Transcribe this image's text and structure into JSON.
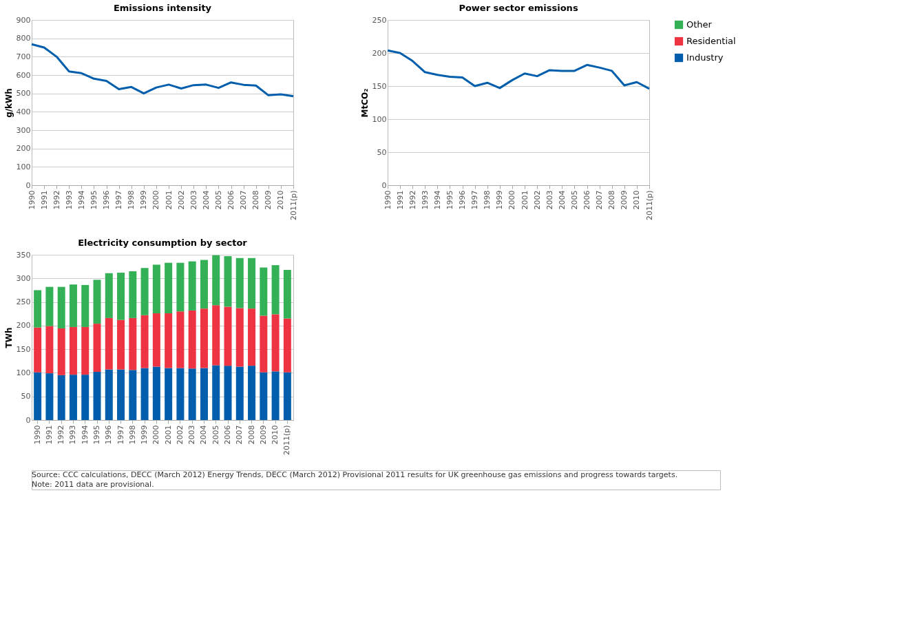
{
  "chart_data": [
    {
      "type": "line",
      "title": "Emissions intensity",
      "ylabel": "g/kWh",
      "categories": [
        "1990",
        "1991",
        "1992",
        "1993",
        "1994",
        "1995",
        "1996",
        "1997",
        "1998",
        "1999",
        "2000",
        "2001",
        "2002",
        "2003",
        "2004",
        "2005",
        "2006",
        "2007",
        "2008",
        "2009",
        "2010",
        "2011(p)"
      ],
      "series": [
        {
          "color": "#005eac",
          "values": [
            768,
            750,
            700,
            620,
            610,
            580,
            568,
            523,
            535,
            500,
            532,
            548,
            527,
            545,
            548,
            530,
            560,
            547,
            543,
            490,
            495,
            485
          ]
        }
      ],
      "ylim": [
        0,
        900
      ],
      "yticks": [
        0,
        100,
        200,
        300,
        400,
        500,
        600,
        700,
        800,
        900
      ],
      "grid": "y"
    },
    {
      "type": "line",
      "title": "Power sector emissions",
      "ylabel": "MtCO₂",
      "categories": [
        "1990",
        "1991",
        "1992",
        "1993",
        "1994",
        "1995",
        "1996",
        "1997",
        "1998",
        "1999",
        "2000",
        "2001",
        "2002",
        "2003",
        "2004",
        "2005",
        "2006",
        "2007",
        "2008",
        "2009",
        "2010",
        "2011(p)"
      ],
      "series": [
        {
          "color": "#005eac",
          "values": [
            204,
            200,
            188,
            171,
            167,
            164,
            163,
            150,
            155,
            147,
            159,
            169,
            165,
            174,
            173,
            173,
            182,
            178,
            173,
            151,
            156,
            146
          ]
        }
      ],
      "ylim": [
        0,
        250
      ],
      "yticks": [
        0,
        50,
        100,
        150,
        200,
        250
      ],
      "grid": "y"
    },
    {
      "type": "bar",
      "title": "Electricity consumption by sector",
      "ylabel": "TWh",
      "stacked": true,
      "categories": [
        "1990",
        "1991",
        "1992",
        "1993",
        "1994",
        "1995",
        "1996",
        "1997",
        "1998",
        "1999",
        "2000",
        "2001",
        "2002",
        "2003",
        "2004",
        "2005",
        "2006",
        "2007",
        "2008",
        "2009",
        "2010",
        "2011(p)"
      ],
      "series": [
        {
          "name": "Industry",
          "color": "#005eac",
          "values": [
            101,
            99,
            95,
            96,
            96,
            102,
            107,
            107,
            106,
            110,
            113,
            110,
            110,
            109,
            110,
            116,
            115,
            113,
            115,
            101,
            103,
            101
          ]
        },
        {
          "name": "Residential",
          "color": "#ee3342",
          "values": [
            95,
            100,
            99,
            101,
            101,
            102,
            109,
            105,
            110,
            112,
            113,
            116,
            120,
            123,
            126,
            127,
            125,
            124,
            121,
            120,
            121,
            114
          ]
        },
        {
          "name": "Other",
          "color": "#34b057",
          "values": [
            79,
            83,
            88,
            90,
            89,
            93,
            95,
            100,
            99,
            100,
            103,
            107,
            103,
            104,
            103,
            106,
            107,
            106,
            107,
            102,
            104,
            103
          ]
        }
      ],
      "ylim": [
        0,
        350
      ],
      "yticks": [
        0,
        50,
        100,
        150,
        200,
        250,
        300,
        350
      ],
      "grid": "y",
      "legend": "right",
      "annotations": [
        "Source: CCC calculations, DECC (March 2012) Energy Trends, DECC (March 2012) Provisional 2011 results for UK greenhouse gas emissions and progress towards targets.",
        "Note: 2011 data are provisional."
      ]
    }
  ]
}
